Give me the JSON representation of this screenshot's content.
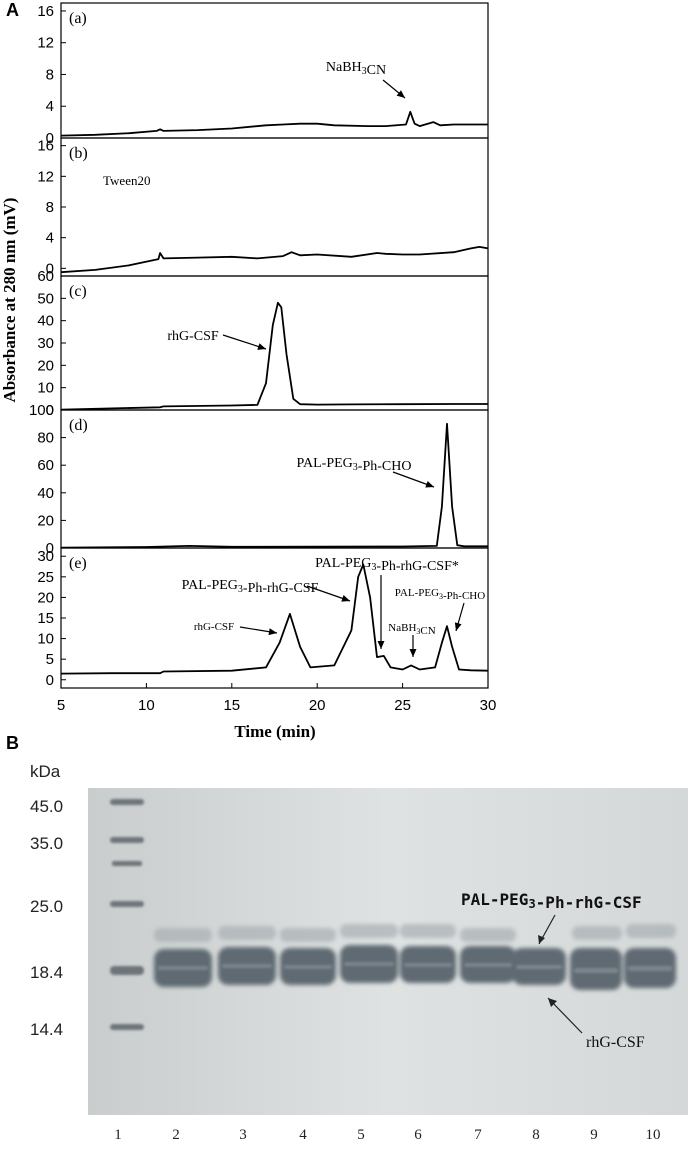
{
  "figure": {
    "panel_a_label": "A",
    "panel_b_label": "B"
  },
  "chart_data": [
    {
      "type": "line",
      "panel_label": "(a)",
      "peak_label": "NaBH3CN",
      "yticks": [
        0,
        4,
        8,
        12,
        16
      ],
      "ylim": [
        0,
        17
      ],
      "xlim": [
        5,
        30
      ],
      "series": [
        {
          "x": [
            5,
            7,
            9,
            10.6,
            10.8,
            11,
            13,
            15,
            17,
            18,
            19,
            20,
            21,
            23,
            24,
            25.2,
            25.45,
            25.7,
            26,
            26.8,
            27.2,
            28,
            30
          ],
          "y": [
            0.3,
            0.4,
            0.6,
            0.9,
            1.1,
            0.9,
            1.0,
            1.2,
            1.6,
            1.7,
            1.8,
            1.8,
            1.6,
            1.5,
            1.5,
            1.7,
            3.3,
            1.8,
            1.5,
            2.0,
            1.6,
            1.7,
            1.7
          ]
        }
      ]
    },
    {
      "type": "line",
      "panel_label": "(b)",
      "peak_label": "Tween20",
      "yticks": [
        0,
        4,
        8,
        12,
        16
      ],
      "ylim": [
        -1,
        17
      ],
      "xlim": [
        5,
        30
      ],
      "series": [
        {
          "x": [
            5,
            7,
            9,
            10.7,
            10.8,
            11,
            13,
            15,
            16.5,
            18,
            18.5,
            19,
            20,
            22,
            23.5,
            24,
            25,
            26,
            28,
            29,
            29.5,
            30
          ],
          "y": [
            -0.5,
            -0.2,
            0.4,
            1.2,
            2.0,
            1.3,
            1.4,
            1.5,
            1.3,
            1.6,
            2.1,
            1.7,
            1.8,
            1.5,
            2.0,
            1.9,
            1.8,
            1.8,
            2.1,
            2.6,
            2.8,
            2.6
          ]
        }
      ]
    },
    {
      "type": "line",
      "panel_label": "(c)",
      "peak_label": "rhG-CSF",
      "yticks": [
        0,
        10,
        20,
        30,
        40,
        50,
        60
      ],
      "ylim": [
        0,
        60
      ],
      "xlim": [
        5,
        30
      ],
      "series": [
        {
          "x": [
            5,
            8,
            10.8,
            11,
            15,
            16.5,
            17,
            17.4,
            17.7,
            17.9,
            18.2,
            18.6,
            19,
            20,
            22,
            25,
            28,
            30
          ],
          "y": [
            0.2,
            0.7,
            1.2,
            1.6,
            2.0,
            2.3,
            12,
            38,
            48,
            46,
            25,
            5,
            2.6,
            2.4,
            2.5,
            2.6,
            2.7,
            2.7
          ]
        }
      ]
    },
    {
      "type": "line",
      "panel_label": "(d)",
      "peak_label": "PAL-PEG3-Ph-CHO",
      "yticks": [
        0,
        20,
        40,
        60,
        80,
        100
      ],
      "ylim": [
        0,
        100
      ],
      "xlim": [
        5,
        30
      ],
      "series": [
        {
          "x": [
            5,
            10,
            12.5,
            15,
            20,
            25,
            27,
            27.3,
            27.6,
            27.9,
            28.2,
            28.6,
            30
          ],
          "y": [
            0.3,
            0.7,
            1.5,
            0.9,
            1.0,
            1.1,
            1.5,
            30,
            90,
            30,
            2,
            1.2,
            1.2
          ]
        }
      ]
    },
    {
      "type": "line",
      "panel_label": "(e)",
      "peak_labels": [
        "rhG-CSF",
        "PAL-PEG3-Ph-rhG-CSF",
        "PAL-PEG3-Ph-rhG-CSF*",
        "NaBH3CN",
        "PAL-PEG3-Ph-CHO"
      ],
      "yticks": [
        0,
        5,
        10,
        15,
        20,
        25,
        30
      ],
      "ylim": [
        -2,
        32
      ],
      "xlim": [
        5,
        30
      ],
      "xticks": [
        5,
        10,
        15,
        20,
        25,
        30
      ],
      "xlabel": "Time (min)",
      "ylabel": "Absorbance at 280 nm (mV)",
      "series": [
        {
          "x": [
            5,
            8,
            10.8,
            11,
            15,
            17,
            17.8,
            18.4,
            19.0,
            19.6,
            21,
            22,
            22.4,
            22.7,
            23.1,
            23.5,
            23.9,
            24.3,
            25,
            25.5,
            26,
            26.9,
            27.3,
            27.6,
            27.9,
            28.3,
            29,
            30
          ],
          "y": [
            1.5,
            1.6,
            1.6,
            2.0,
            2.2,
            3.0,
            9,
            16,
            8,
            3,
            3.5,
            12,
            25,
            28,
            20,
            5.5,
            5.8,
            3.0,
            2.5,
            3.5,
            2.5,
            3.0,
            9,
            13,
            8,
            2.5,
            2.3,
            2.2
          ]
        }
      ]
    }
  ],
  "gel": {
    "kda_label": "kDa",
    "markers": [
      "45.0",
      "35.0",
      "25.0",
      "18.4",
      "14.4"
    ],
    "lanes": [
      "1",
      "2",
      "3",
      "4",
      "5",
      "6",
      "7",
      "8",
      "9",
      "10"
    ],
    "band_label_top": "PAL-PEG3-Ph-rhG-CSF",
    "band_label_bottom": "rhG-CSF"
  },
  "colors": {
    "gel_background": "#dcdfdf",
    "band": "#5f6a72",
    "line": "#000000"
  }
}
